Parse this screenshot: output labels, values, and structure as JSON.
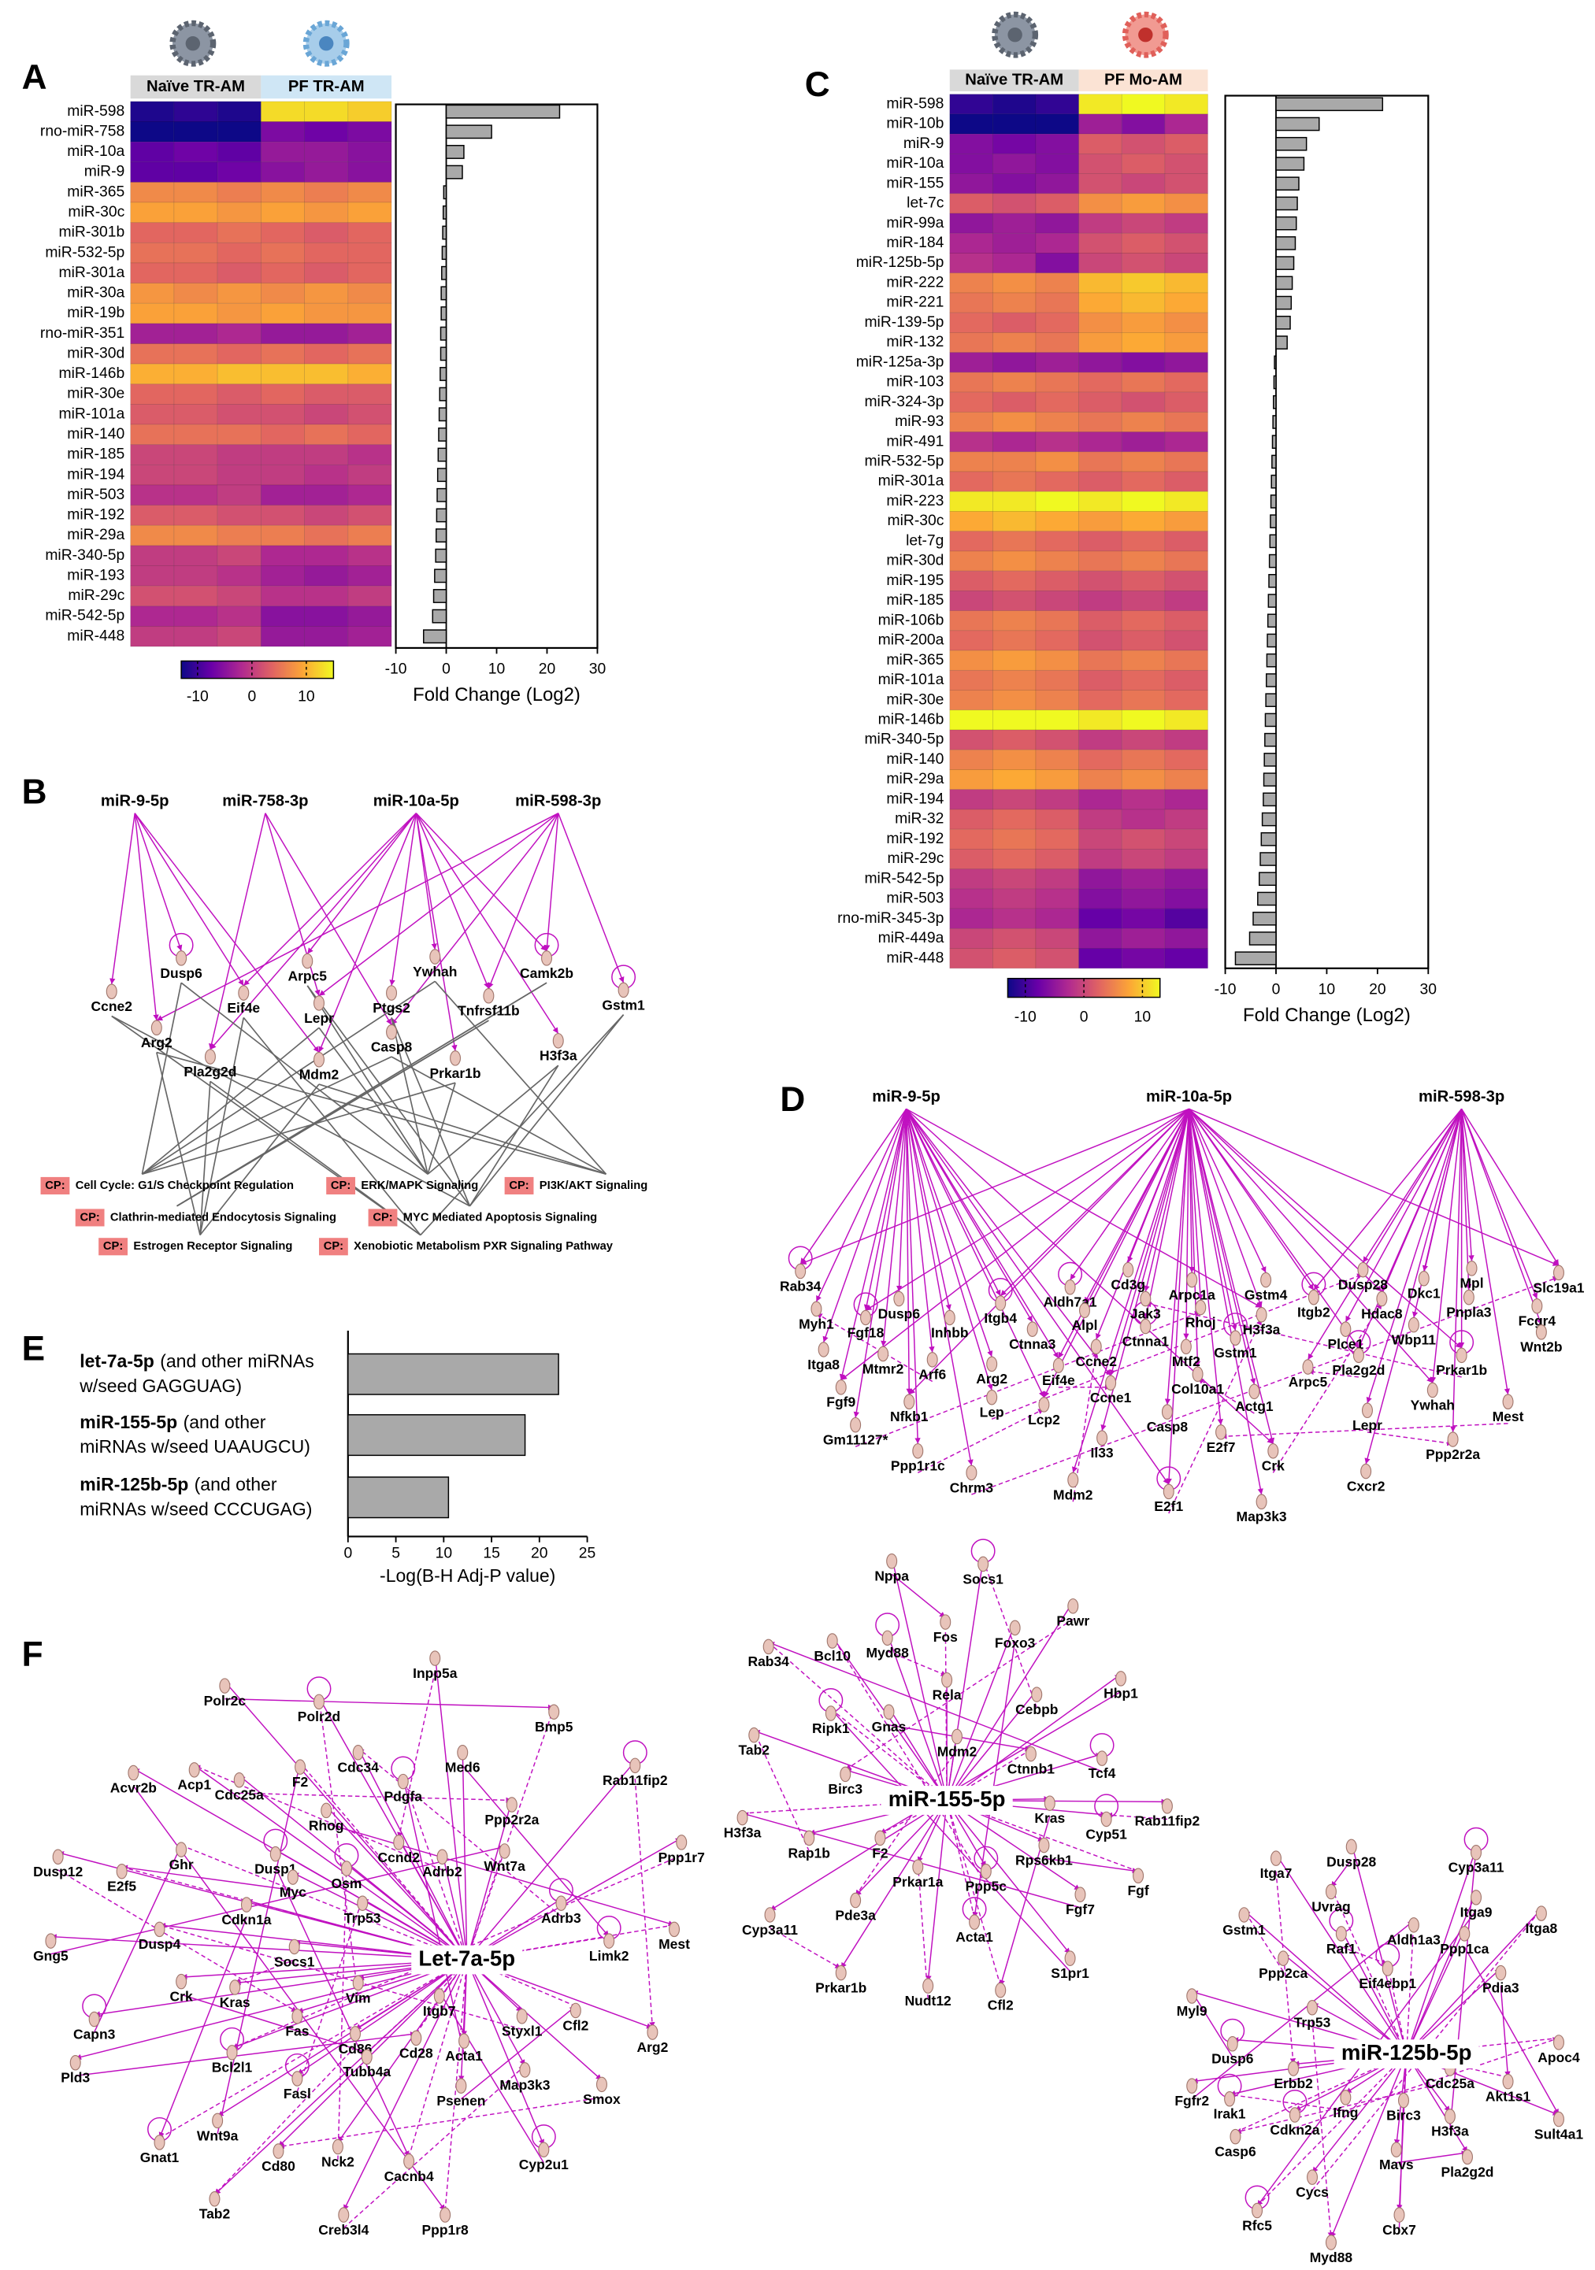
{
  "panel_labels": [
    "A",
    "B",
    "C",
    "D",
    "E",
    "F"
  ],
  "chart_data": [
    {
      "type": "heatmap",
      "groups": [
        "Naïve TR-AM",
        "PF TR-AM"
      ],
      "rows": [
        "miR-598",
        "rno-miR-758",
        "miR-10a",
        "miR-9",
        "miR-365",
        "miR-30c",
        "miR-301b",
        "miR-532-5p",
        "miR-301a",
        "miR-30a",
        "miR-19b",
        "rno-miR-351",
        "miR-30d",
        "miR-146b",
        "miR-30e",
        "miR-101a",
        "miR-140",
        "miR-185",
        "miR-194",
        "miR-503",
        "miR-192",
        "miR-29a",
        "miR-340-5p",
        "miR-193",
        "miR-29c",
        "miR-542-5p",
        "miR-448"
      ],
      "values": [
        [
          -12,
          -11,
          -12,
          13,
          13,
          12
        ],
        [
          -13,
          -13,
          -13,
          -6,
          -7,
          -6
        ],
        [
          -8,
          -7,
          -8,
          -4,
          -4,
          -5
        ],
        [
          -8,
          -8,
          -7,
          -5,
          -4,
          -5
        ],
        [
          7,
          7,
          6,
          7,
          6,
          7
        ],
        [
          9,
          9,
          8,
          9,
          8,
          9
        ],
        [
          4,
          4,
          5,
          4,
          3,
          4
        ],
        [
          5,
          5,
          4,
          5,
          4,
          4
        ],
        [
          4,
          4,
          3,
          4,
          3,
          4
        ],
        [
          8,
          7,
          8,
          7,
          8,
          7
        ],
        [
          9,
          9,
          8,
          9,
          8,
          8
        ],
        [
          -3,
          -3,
          -2,
          -4,
          -4,
          -3
        ],
        [
          5,
          5,
          4,
          5,
          4,
          5
        ],
        [
          10,
          10,
          11,
          11,
          11,
          10
        ],
        [
          4,
          4,
          3,
          4,
          3,
          3
        ],
        [
          3,
          3,
          2,
          2,
          1,
          2
        ],
        [
          5,
          5,
          5,
          4,
          5,
          4
        ],
        [
          1,
          1,
          0,
          0,
          0,
          -1
        ],
        [
          1,
          1,
          0,
          0,
          -1,
          0
        ],
        [
          -1,
          -1,
          0,
          -3,
          -3,
          -2
        ],
        [
          3,
          3,
          2,
          2,
          1,
          2
        ],
        [
          7,
          7,
          6,
          6,
          5,
          6
        ],
        [
          0,
          0,
          1,
          -2,
          -2,
          -1
        ],
        [
          0,
          0,
          -1,
          -3,
          -4,
          -3
        ],
        [
          2,
          2,
          1,
          -1,
          -1,
          0
        ],
        [
          -2,
          -2,
          -1,
          -5,
          -5,
          -4
        ],
        [
          0,
          0,
          1,
          -4,
          -4,
          -3
        ]
      ],
      "zlim": [
        -13,
        15
      ],
      "zticks": [
        -10,
        0,
        10
      ],
      "colormap": [
        "#0d0887",
        "#6a00a8",
        "#b12a90",
        "#e16462",
        "#fca636",
        "#f0f921"
      ]
    },
    {
      "type": "barh",
      "values": [
        22.5,
        9,
        3.5,
        3.2,
        -0.5,
        -0.6,
        -0.7,
        -0.8,
        -0.9,
        -1,
        -1,
        -1.1,
        -1.1,
        -1.2,
        -1.3,
        -1.4,
        -1.5,
        -1.6,
        -1.7,
        -1.8,
        -1.9,
        -2,
        -2.1,
        -2.3,
        -2.5,
        -2.7,
        -4.5
      ],
      "color": "#a9a9a9",
      "xlim": [
        -10,
        30
      ],
      "xticks": [
        -10,
        0,
        10,
        20,
        30
      ],
      "xlabel": "Fold Change (Log2)"
    },
    {
      "type": "heatmap",
      "groups": [
        "Naïve TR-AM",
        "PF Mo-AM"
      ],
      "rows": [
        "miR-598",
        "miR-10b",
        "miR-9",
        "miR-10a",
        "miR-155",
        "let-7c",
        "miR-99a",
        "miR-184",
        "miR-125b-5p",
        "miR-222",
        "miR-221",
        "miR-139-5p",
        "miR-132",
        "miR-125a-3p",
        "miR-103",
        "miR-324-3p",
        "miR-93",
        "miR-491",
        "miR-532-5p",
        "miR-301a",
        "miR-223",
        "miR-30c",
        "let-7g",
        "miR-30d",
        "miR-195",
        "miR-185",
        "miR-106b",
        "miR-200a",
        "miR-365",
        "miR-101a",
        "miR-30e",
        "miR-146b",
        "miR-340-5p",
        "miR-140",
        "miR-29a",
        "miR-194",
        "miR-32",
        "miR-192",
        "miR-29c",
        "miR-542-5p",
        "miR-503",
        "rno-miR-345-3p",
        "miR-449a",
        "miR-448"
      ],
      "values": [
        [
          -11,
          -12,
          -11,
          12,
          13,
          12
        ],
        [
          -13,
          -13,
          -13,
          -4,
          -6,
          -3
        ],
        [
          -6,
          -7,
          -6,
          2,
          1,
          2
        ],
        [
          -6,
          -5,
          -6,
          1,
          2,
          1
        ],
        [
          -5,
          -6,
          -5,
          1,
          0,
          1
        ],
        [
          2,
          1,
          2,
          6,
          7,
          6
        ],
        [
          -5,
          -4,
          -5,
          -1,
          0,
          -1
        ],
        [
          -3,
          -4,
          -3,
          1,
          2,
          1
        ],
        [
          -2,
          -3,
          -6,
          0,
          1,
          0
        ],
        [
          5,
          6,
          5,
          9,
          10,
          9
        ],
        [
          4,
          5,
          4,
          8,
          9,
          8
        ],
        [
          3,
          2,
          3,
          6,
          7,
          6
        ],
        [
          4,
          5,
          4,
          7,
          8,
          7
        ],
        [
          -4,
          -5,
          -4,
          -5,
          -6,
          -5
        ],
        [
          4,
          5,
          4,
          3,
          4,
          3
        ],
        [
          3,
          2,
          3,
          2,
          1,
          2
        ],
        [
          5,
          6,
          5,
          4,
          5,
          4
        ],
        [
          -2,
          -3,
          -2,
          -3,
          -4,
          -3
        ],
        [
          5,
          5,
          6,
          4,
          5,
          4
        ],
        [
          3,
          4,
          3,
          2,
          3,
          2
        ],
        [
          12,
          12,
          13,
          12,
          13,
          12
        ],
        [
          8,
          9,
          8,
          7,
          8,
          7
        ],
        [
          3,
          4,
          3,
          2,
          3,
          2
        ],
        [
          5,
          6,
          5,
          4,
          5,
          4
        ],
        [
          2,
          3,
          2,
          1,
          2,
          1
        ],
        [
          0,
          1,
          0,
          -1,
          0,
          -1
        ],
        [
          4,
          5,
          4,
          2,
          3,
          2
        ],
        [
          3,
          4,
          3,
          1,
          2,
          1
        ],
        [
          6,
          7,
          6,
          4,
          5,
          4
        ],
        [
          4,
          5,
          4,
          2,
          3,
          2
        ],
        [
          5,
          6,
          5,
          3,
          4,
          3
        ],
        [
          13,
          13,
          13,
          12,
          13,
          12
        ],
        [
          1,
          2,
          1,
          -1,
          0,
          -1
        ],
        [
          5,
          6,
          5,
          3,
          4,
          3
        ],
        [
          7,
          8,
          7,
          5,
          6,
          5
        ],
        [
          -1,
          0,
          -1,
          -3,
          -2,
          -3
        ],
        [
          2,
          3,
          2,
          -1,
          -2,
          -1
        ],
        [
          3,
          4,
          3,
          0,
          1,
          0
        ],
        [
          2,
          3,
          2,
          -1,
          0,
          -1
        ],
        [
          -1,
          0,
          -1,
          -5,
          -4,
          -5
        ],
        [
          -2,
          -1,
          -2,
          -6,
          -5,
          -6
        ],
        [
          -3,
          -2,
          -3,
          -8,
          -7,
          -9
        ],
        [
          0,
          1,
          0,
          -5,
          -4,
          -5
        ],
        [
          1,
          2,
          1,
          -8,
          -7,
          -8
        ]
      ],
      "zlim": [
        -13,
        13
      ],
      "zticks": [
        -10,
        0,
        10
      ],
      "colormap": [
        "#0d0887",
        "#6a00a8",
        "#b12a90",
        "#e16462",
        "#fca636",
        "#f0f921"
      ]
    },
    {
      "type": "barh",
      "values": [
        21,
        8.5,
        6,
        5.5,
        4.5,
        4.2,
        4,
        3.8,
        3.5,
        3.2,
        3,
        2.8,
        2.2,
        -0.3,
        -0.4,
        -0.5,
        -0.6,
        -0.7,
        -0.8,
        -0.9,
        -1,
        -1.1,
        -1.2,
        -1.3,
        -1.4,
        -1.5,
        -1.6,
        -1.7,
        -1.8,
        -1.9,
        -2,
        -2.1,
        -2.2,
        -2.3,
        -2.4,
        -2.5,
        -2.7,
        -2.9,
        -3.1,
        -3.3,
        -3.6,
        -4.5,
        -5.2,
        -8
      ],
      "color": "#a9a9a9",
      "xlim": [
        -10,
        30
      ],
      "xticks": [
        -10,
        0,
        10,
        20,
        30
      ],
      "xlabel": "Fold Change (Log2)"
    },
    {
      "type": "bar",
      "categories": [
        "let-7a-5p",
        "miR-155-5p",
        "miR-125b-5p"
      ],
      "category_notes": [
        [
          "(and other miRNAs",
          "w/seed GAGGUAG)"
        ],
        [
          "(and other",
          "miRNAs w/seed UAAUGCU)"
        ],
        [
          "(and other",
          "miRNAs w/seed CCCUGAG)"
        ]
      ],
      "values": [
        22,
        18.5,
        10.5
      ],
      "color": "#a9a9a9",
      "category_color": "#1a1acc",
      "xlim": [
        0,
        25
      ],
      "xticks": [
        0,
        5,
        10,
        15,
        20,
        25
      ],
      "xlabel": "-Log(B-H Adj-P value)"
    }
  ],
  "network_b": {
    "sources": [
      "miR-9-5p",
      "miR-758-3p",
      "miR-10a-5p",
      "miR-598-3p"
    ],
    "targets": [
      "Dusp6",
      "Arpc5",
      "Ywhah",
      "Camk2b",
      "Ccne2",
      "Arg2",
      "Eif4e",
      "Lepr",
      "Ptgs2",
      "Casp8",
      "Tnfrsf11b",
      "Gstm1",
      "Mdm2",
      "Pla2g2d",
      "Prkar1b",
      "H3f3a"
    ],
    "pathway_prefix": "CP:",
    "pathways": [
      "Cell Cycle: G1/S Checkpoint Regulation",
      "ERK/MAPK Signaling",
      "PI3K/AKT Signaling",
      "Clathrin-mediated Endocytosis Signaling",
      "MYC Mediated Apoptosis Signaling",
      "Estrogen Receptor Signaling",
      "Xenobiotic Metabolism PXR Signaling Pathway"
    ]
  },
  "network_d": {
    "sources": [
      "miR-9-5p",
      "miR-10a-5p",
      "miR-598-3p"
    ],
    "targets": [
      "Rab34",
      "Myh1",
      "Itga8",
      "Fgf9",
      "Gm11127*",
      "Dusp6",
      "Fgf18",
      "Mtmr2",
      "Arf6",
      "Nfkb1",
      "Ppp1r1c",
      "Inhbb",
      "Itgb4",
      "Arg2",
      "Lep",
      "Lcp2",
      "Chrm3",
      "Ctnna3",
      "Aldh7a1",
      "Alpl",
      "Eif4e",
      "Ccne2",
      "Cd3g",
      "Jak3",
      "Ctnna1",
      "Ccne1",
      "Mtf2",
      "Casp8",
      "Mdm2",
      "Il33",
      "E2f1",
      "Col10a1",
      "Arpc1a",
      "Rhoj",
      "Gstm4",
      "H3f3a",
      "Gstm1",
      "E2f7",
      "Actg1",
      "Map3k3",
      "Crk",
      "Arpc5",
      "Itgb2",
      "Dusp28",
      "Dkc1",
      "Hdac8",
      "Wbp11",
      "Plce1",
      "Pla2g2d",
      "Cxcr2",
      "Lepr",
      "Ywhah",
      "Mpl",
      "Pnpla3",
      "Prkar1b",
      "Ppp2r2a",
      "Mest",
      "Slc19a1",
      "Fcgr4",
      "Wnt2b"
    ]
  },
  "networks_f": [
    {
      "hub": "Let-7a-5p",
      "nodes": [
        "Polr2c",
        "Polr2d",
        "Inpp5a",
        "Bmp5",
        "Med6",
        "Cdc34",
        "Rab11fip2",
        "F2",
        "Acvr2b",
        "Acp1",
        "Cdc25a",
        "Pdgfa",
        "Rhog",
        "Ppp2r2a",
        "Ppp1r7",
        "Ghr",
        "Dusp1",
        "Ccnd2",
        "Adrb2",
        "Wnt7a",
        "Myc",
        "Osm",
        "Dusp12",
        "E2f5",
        "Cdkn1a",
        "Trp53",
        "Adrb3",
        "Mest",
        "Gng5",
        "Dusp4",
        "Socs1",
        "Limk2",
        "Crk",
        "Kras",
        "Vim",
        "Itgb7",
        "Capn3",
        "Fas",
        "Styxl1",
        "Cfl2",
        "Pld3",
        "Bcl2l1",
        "Cd86",
        "Cd28",
        "Acta1",
        "Arg2",
        "Fasl",
        "Tubb4a",
        "Psenen",
        "Map3k3",
        "Smox",
        "Gnat1",
        "Wnt9a",
        "Cd80",
        "Nck2",
        "Cacnb4",
        "Cyp2u1",
        "Tab2",
        "Creb3l4",
        "Ppp1r8"
      ]
    },
    {
      "hub": "miR-155-5p",
      "nodes": [
        "Nppa",
        "Socs1",
        "Pawr",
        "Fos",
        "Foxo3",
        "Bcl10",
        "Myd88",
        "Rab34",
        "Hbp1",
        "Rela",
        "Cebpb",
        "Ripk1",
        "Gnas",
        "Tab2",
        "Mdm2",
        "Ctnnb1",
        "Tcf4",
        "Birc3",
        "Rab11fip2",
        "H3f3a",
        "Kras",
        "Cyp51",
        "Rap1b",
        "F2",
        "Rps6kb1",
        "Prkar1a",
        "Ppp5c",
        "Fgf",
        "Fgf7",
        "Pde3a",
        "Cyp3a11",
        "Acta1",
        "S1pr1",
        "Prkar1b",
        "Nudt12",
        "Cfl2"
      ]
    },
    {
      "hub": "miR-125b-5p",
      "nodes": [
        "Dusp28",
        "Cyp3a11",
        "Itga7",
        "Uvrag",
        "Itga9",
        "Gstm1",
        "Raf1",
        "Aldh1a3",
        "Ppp1ca",
        "Itga8",
        "Ppp2ca",
        "Eif4ebp1",
        "Pdia3",
        "Myl9",
        "Trp53",
        "Apoc4",
        "Dusp6",
        "Erbb2",
        "Cdc25a",
        "Akt1s1",
        "Fgfr2",
        "Irak1",
        "Ifng",
        "Birc3",
        "H3f3a",
        "Sult4a1",
        "Cdkn2a",
        "Casp6",
        "Mavs",
        "Pla2g2d",
        "Cycs",
        "Rfc5",
        "Cbx7",
        "Myd88"
      ]
    }
  ]
}
